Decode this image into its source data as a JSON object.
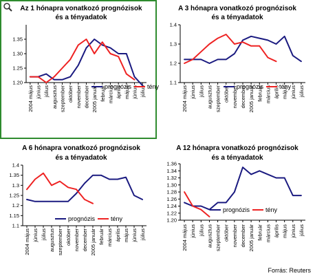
{
  "source": "Forrás: Reuters",
  "colors": {
    "prognosis": "#1a1a80",
    "actual": "#ee2222",
    "frame": "#2e8b2e"
  },
  "panel_marker_icon": "magnifier-icon",
  "chart_data": [
    {
      "type": "line",
      "title": [
        "Az 1 hónapra vonatkozó prognózisok",
        "és a tényadatok"
      ],
      "categories": [
        "2004 május",
        "június",
        "július",
        "augusztus",
        "szeptember",
        "október",
        "november",
        "december",
        "2005 január",
        "február",
        "március",
        "április",
        "május",
        "június",
        "július"
      ],
      "yticks": [
        1.2,
        1.25,
        1.3,
        1.35
      ],
      "ylim": [
        1.2,
        1.4
      ],
      "ytick_format": "0.00",
      "highlighted": true,
      "legend_position": "bottom-right",
      "series": [
        {
          "name": "prognózis",
          "color": "#1a1a80",
          "values": [
            1.22,
            1.22,
            1.23,
            1.21,
            1.21,
            1.22,
            1.26,
            1.32,
            1.35,
            1.33,
            1.32,
            1.3,
            1.3,
            1.22,
            1.19
          ]
        },
        {
          "name": "tény",
          "color": "#ee2222",
          "values": [
            1.22,
            1.22,
            1.2,
            1.22,
            1.25,
            1.28,
            1.33,
            1.35,
            1.3,
            1.34,
            1.3,
            1.29,
            1.23,
            1.21,
            null
          ]
        }
      ]
    },
    {
      "type": "line",
      "title": [
        "A 3 hónapra vonatkozó prognózisok",
        "és a tényadatok"
      ],
      "categories": [
        "2004 május",
        "június",
        "július",
        "augusztus",
        "szeptember",
        "október",
        "november",
        "december",
        "2005 január",
        "február",
        "március",
        "április",
        "május",
        "június",
        "július"
      ],
      "yticks": [
        1.1,
        1.2,
        1.3,
        1.4
      ],
      "ylim": [
        1.1,
        1.4
      ],
      "ytick_format": "0.0",
      "highlighted": false,
      "legend_position": "bottom-right",
      "series": [
        {
          "name": "prognózis",
          "color": "#1a1a80",
          "values": [
            1.22,
            1.22,
            1.22,
            1.2,
            1.22,
            1.22,
            1.25,
            1.32,
            1.34,
            1.33,
            1.32,
            1.3,
            1.34,
            1.24,
            1.21
          ]
        },
        {
          "name": "tény",
          "color": "#ee2222",
          "values": [
            1.2,
            1.22,
            1.26,
            1.3,
            1.33,
            1.35,
            1.3,
            1.31,
            1.29,
            1.29,
            1.23,
            1.21,
            null,
            null,
            null
          ]
        }
      ]
    },
    {
      "type": "line",
      "title": [
        "A 6 hónapra vonatkozó prognózisok",
        "és a tényadatok"
      ],
      "categories": [
        "2004 május",
        "június",
        "július",
        "augusztus",
        "szeptember",
        "október",
        "november",
        "december",
        "2005 január",
        "február",
        "március",
        "április",
        "május",
        "június",
        "július"
      ],
      "yticks": [
        1.1,
        1.15,
        1.2,
        1.25,
        1.3,
        1.35,
        1.4
      ],
      "ylim": [
        1.1,
        1.4
      ],
      "ytick_format": "0.0#",
      "highlighted": false,
      "legend_position": "bottom-right",
      "series": [
        {
          "name": "prognózis",
          "color": "#1a1a80",
          "values": [
            1.23,
            1.22,
            1.22,
            1.22,
            1.22,
            1.22,
            1.26,
            1.31,
            1.35,
            1.35,
            1.33,
            1.33,
            1.34,
            1.25,
            1.23
          ]
        },
        {
          "name": "tény",
          "color": "#ee2222",
          "values": [
            1.28,
            1.33,
            1.36,
            1.3,
            1.32,
            1.29,
            1.28,
            1.23,
            1.21,
            null,
            null,
            null,
            null,
            null,
            null
          ]
        }
      ]
    },
    {
      "type": "line",
      "title": [
        "A 12 hónapra vonatkozó prognózisok",
        "és a tényadatok"
      ],
      "categories": [
        "2004 május",
        "június",
        "július",
        "augusztus",
        "szeptember",
        "október",
        "november",
        "december",
        "2005 január",
        "február",
        "március",
        "április",
        "május",
        "június",
        "július"
      ],
      "yticks": [
        1.2,
        1.22,
        1.24,
        1.26,
        1.28,
        1.3,
        1.32,
        1.34,
        1.36
      ],
      "ylim": [
        1.2,
        1.36
      ],
      "ytick_format": "0.00",
      "highlighted": false,
      "legend_position": "bottom-right",
      "series": [
        {
          "name": "prognózis",
          "color": "#1a1a80",
          "values": [
            1.25,
            1.24,
            1.24,
            1.23,
            1.25,
            1.25,
            1.28,
            1.35,
            1.33,
            1.34,
            1.33,
            1.32,
            1.32,
            1.27,
            1.27
          ]
        },
        {
          "name": "tény",
          "color": "#ee2222",
          "values": [
            1.28,
            1.24,
            1.23,
            1.21,
            null,
            null,
            null,
            null,
            null,
            null,
            null,
            null,
            null,
            null,
            null
          ]
        }
      ]
    }
  ]
}
